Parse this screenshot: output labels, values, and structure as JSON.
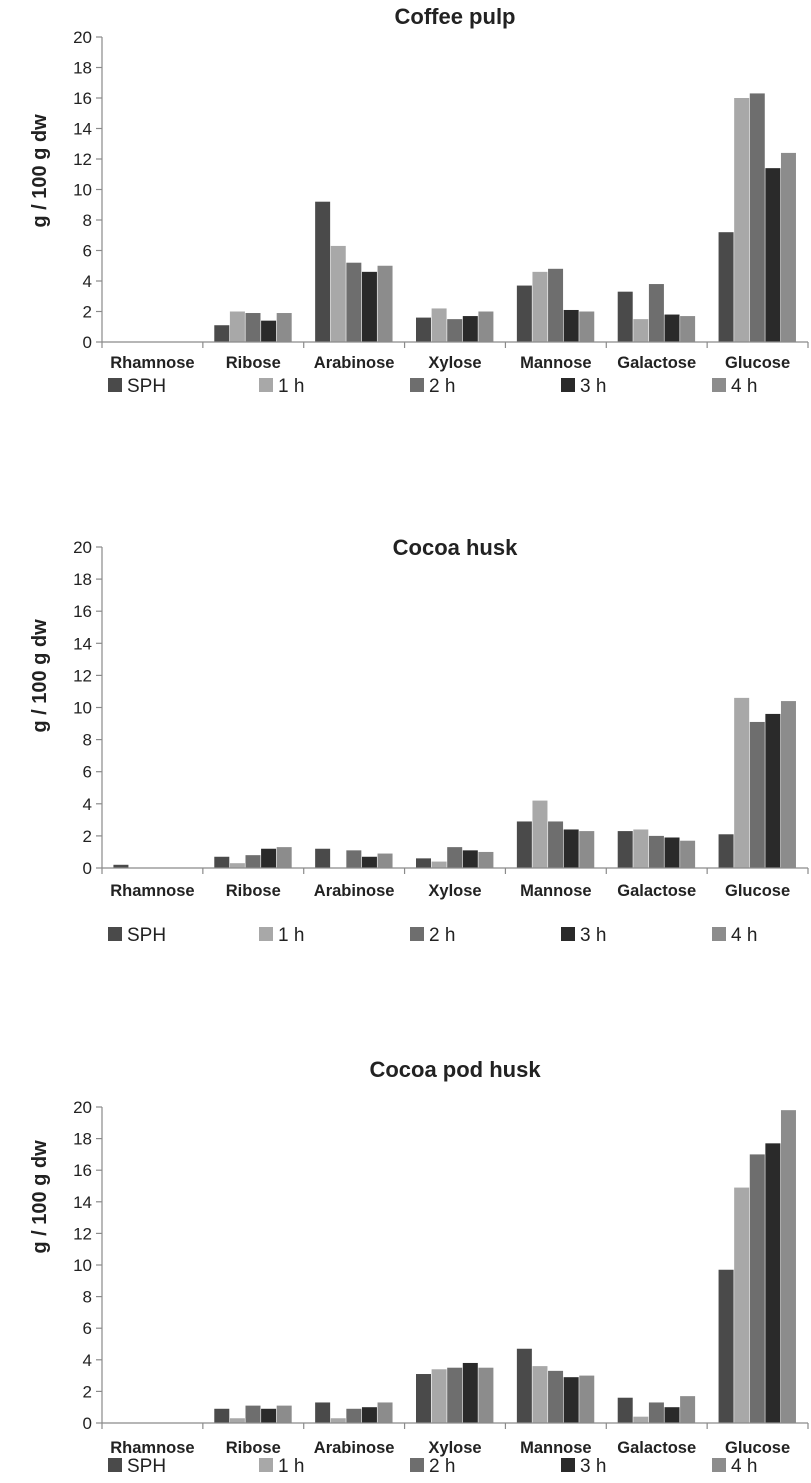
{
  "chart_data": [
    {
      "type": "bar",
      "title": "Coffee pulp",
      "ylabel": "g / 100 g dw",
      "ylim": [
        0,
        20
      ],
      "yticks": [
        "0",
        "2",
        "4",
        "6",
        "8",
        "10",
        "12",
        "14",
        "16",
        "18",
        "20"
      ],
      "categories": [
        "Rhamnose",
        "Ribose",
        "Arabinose",
        "Xylose",
        "Mannose",
        "Galactose",
        "Glucose"
      ],
      "legend_position": "bottom",
      "grid": false,
      "series": [
        {
          "name": "SPH",
          "color": "#4a4a4a",
          "values": [
            0,
            1.1,
            9.2,
            1.6,
            3.7,
            3.3,
            7.2
          ]
        },
        {
          "name": "1 h",
          "color": "#a8a8a8",
          "values": [
            0,
            2.0,
            6.3,
            2.2,
            4.6,
            1.5,
            16.0
          ]
        },
        {
          "name": "2 h",
          "color": "#6e6e6e",
          "values": [
            0,
            1.9,
            5.2,
            1.5,
            4.8,
            3.8,
            16.3
          ]
        },
        {
          "name": "3 h",
          "color": "#2a2a2a",
          "values": [
            0,
            1.4,
            4.6,
            1.7,
            2.1,
            1.8,
            11.4
          ]
        },
        {
          "name": "4 h",
          "color": "#8c8c8c",
          "values": [
            0,
            1.9,
            5.0,
            2.0,
            2.0,
            1.7,
            12.4
          ]
        }
      ]
    },
    {
      "type": "bar",
      "title": "Cocoa husk",
      "ylabel": "g / 100 g dw",
      "ylim": [
        0,
        20
      ],
      "yticks": [
        "0",
        "2",
        "4",
        "6",
        "8",
        "10",
        "12",
        "14",
        "16",
        "18",
        "20"
      ],
      "categories": [
        "Rhamnose",
        "Ribose",
        "Arabinose",
        "Xylose",
        "Mannose",
        "Galactose",
        "Glucose"
      ],
      "legend_position": "bottom",
      "grid": false,
      "series": [
        {
          "name": "SPH",
          "color": "#4a4a4a",
          "values": [
            0.2,
            0.7,
            1.2,
            0.6,
            2.9,
            2.3,
            2.1
          ]
        },
        {
          "name": "1 h",
          "color": "#a8a8a8",
          "values": [
            0,
            0.3,
            0,
            0.4,
            4.2,
            2.4,
            10.6
          ]
        },
        {
          "name": "2 h",
          "color": "#6e6e6e",
          "values": [
            0,
            0.8,
            1.1,
            1.3,
            2.9,
            2.0,
            9.1
          ]
        },
        {
          "name": "3 h",
          "color": "#2a2a2a",
          "values": [
            0,
            1.2,
            0.7,
            1.1,
            2.4,
            1.9,
            9.6
          ]
        },
        {
          "name": "4 h",
          "color": "#8c8c8c",
          "values": [
            0,
            1.3,
            0.9,
            1.0,
            2.3,
            1.7,
            10.4
          ]
        }
      ]
    },
    {
      "type": "bar",
      "title": "Cocoa pod husk",
      "ylabel": "g / 100 g dw",
      "ylim": [
        0,
        20
      ],
      "yticks": [
        "0",
        "2",
        "4",
        "6",
        "8",
        "10",
        "12",
        "14",
        "16",
        "18",
        "20"
      ],
      "categories": [
        "Rhamnose",
        "Ribose",
        "Arabinose",
        "Xylose",
        "Mannose",
        "Galactose",
        "Glucose"
      ],
      "legend_position": "bottom",
      "grid": false,
      "series": [
        {
          "name": "SPH",
          "color": "#4a4a4a",
          "values": [
            0,
            0.9,
            1.3,
            3.1,
            4.7,
            1.6,
            9.7
          ]
        },
        {
          "name": "1 h",
          "color": "#a8a8a8",
          "values": [
            0,
            0.3,
            0.3,
            3.4,
            3.6,
            0.4,
            14.9
          ]
        },
        {
          "name": "2 h",
          "color": "#6e6e6e",
          "values": [
            0,
            1.1,
            0.9,
            3.5,
            3.3,
            1.3,
            17.0
          ]
        },
        {
          "name": "3 h",
          "color": "#2a2a2a",
          "values": [
            0,
            0.9,
            1.0,
            3.8,
            2.9,
            1.0,
            17.7
          ]
        },
        {
          "name": "4 h",
          "color": "#8c8c8c",
          "values": [
            0,
            1.1,
            1.3,
            3.5,
            3.0,
            1.7,
            19.8
          ]
        }
      ]
    }
  ]
}
